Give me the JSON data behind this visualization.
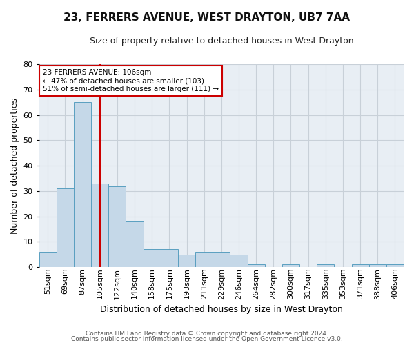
{
  "title": "23, FERRERS AVENUE, WEST DRAYTON, UB7 7AA",
  "subtitle": "Size of property relative to detached houses in West Drayton",
  "xlabel": "Distribution of detached houses by size in West Drayton",
  "ylabel": "Number of detached properties",
  "footer1": "Contains HM Land Registry data © Crown copyright and database right 2024.",
  "footer2": "Contains public sector information licensed under the Open Government Licence v3.0.",
  "annotation_line1": "23 FERRERS AVENUE: 106sqm",
  "annotation_line2": "← 47% of detached houses are smaller (103)",
  "annotation_line3": "51% of semi-detached houses are larger (111) →",
  "bar_color": "#c5d8e8",
  "bar_edge_color": "#5a9fc0",
  "vline_color": "#cc0000",
  "categories": [
    "51sqm",
    "69sqm",
    "87sqm",
    "105sqm",
    "122sqm",
    "140sqm",
    "158sqm",
    "175sqm",
    "193sqm",
    "211sqm",
    "229sqm",
    "246sqm",
    "264sqm",
    "282sqm",
    "300sqm",
    "317sqm",
    "335sqm",
    "353sqm",
    "371sqm",
    "388sqm",
    "406sqm"
  ],
  "values": [
    6,
    31,
    65,
    33,
    32,
    18,
    7,
    7,
    5,
    6,
    6,
    5,
    1,
    0,
    1,
    0,
    1,
    0,
    1,
    1,
    1
  ],
  "vline_x": 3.0,
  "ylim": [
    0,
    80
  ],
  "yticks": [
    0,
    10,
    20,
    30,
    40,
    50,
    60,
    70,
    80
  ],
  "grid_color": "#c8d0d8",
  "bg_color": "#e8eef4",
  "title_fontsize": 11,
  "subtitle_fontsize": 9,
  "ylabel_fontsize": 9,
  "xlabel_fontsize": 9,
  "tick_fontsize": 8,
  "footer_fontsize": 6.5,
  "ann_fontsize": 7.5
}
